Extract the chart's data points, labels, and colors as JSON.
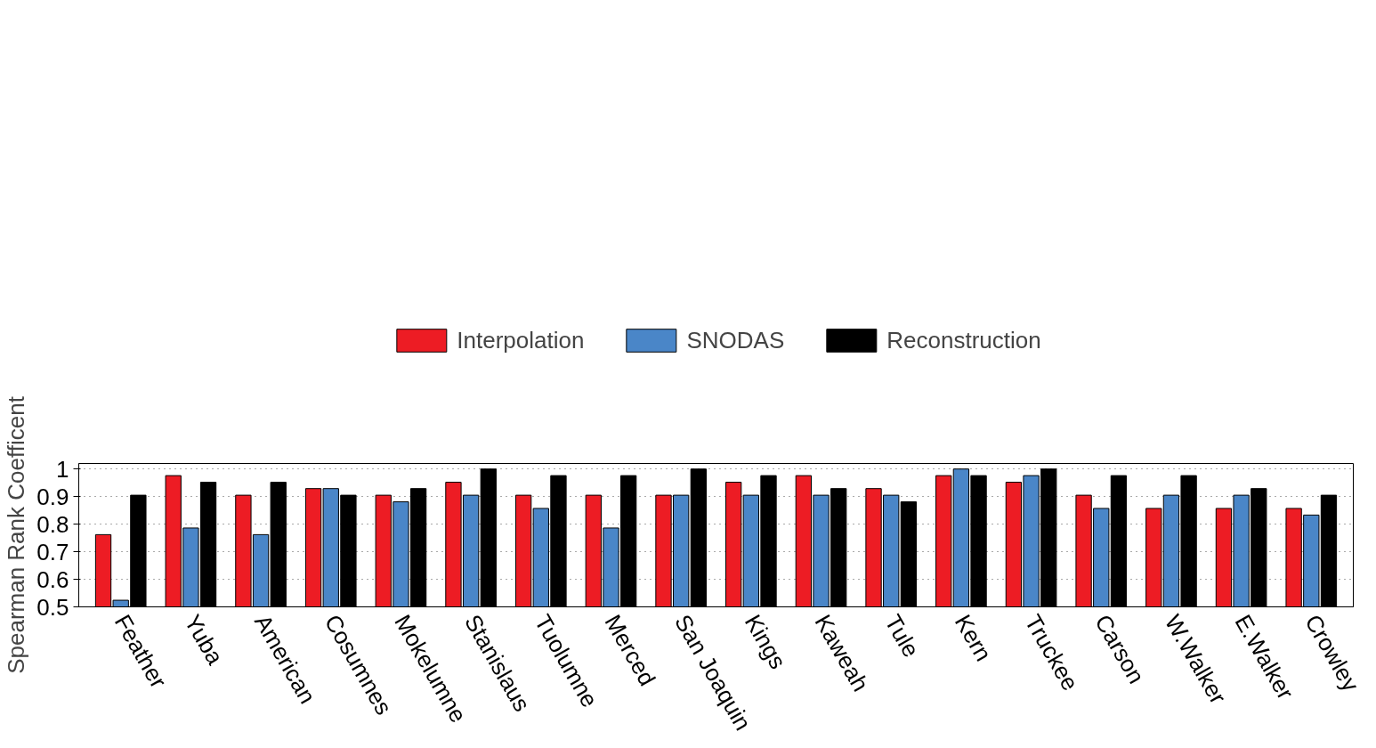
{
  "chart_data": {
    "type": "bar",
    "ylabel": "Spearman Rank Coefficent",
    "categories": [
      "Feather",
      "Yuba",
      "American",
      "Cosumnes",
      "Mokelumne",
      "Stanislaus",
      "Tuolumne",
      "Merced",
      "San Joaquin",
      "Kings",
      "Kaweah",
      "Tule",
      "Kern",
      "Truckee",
      "Carson",
      "W.Walker",
      "E.Walker",
      "Crowley"
    ],
    "series": [
      {
        "name": "Interpolation",
        "color": "#ed1c24",
        "values": [
          0.762,
          0.976,
          0.905,
          0.929,
          0.905,
          0.952,
          0.905,
          0.905,
          0.905,
          0.952,
          0.976,
          0.929,
          0.976,
          0.952,
          0.905,
          0.857,
          0.857,
          0.857
        ]
      },
      {
        "name": "SNODAS",
        "color": "#4a86c8",
        "values": [
          0.524,
          0.786,
          0.762,
          0.929,
          0.881,
          0.905,
          0.857,
          0.786,
          0.905,
          0.905,
          0.905,
          0.905,
          1,
          0.976,
          0.857,
          0.905,
          0.905,
          0.833
        ]
      },
      {
        "name": "Reconstruction",
        "color": "#000000",
        "values": [
          0.905,
          0.952,
          0.952,
          0.905,
          0.929,
          1,
          0.976,
          0.976,
          1,
          0.976,
          0.929,
          0.881,
          0.976,
          1,
          0.976,
          0.976,
          0.929,
          0.905
        ]
      }
    ],
    "ylim": [
      0.5,
      1.02
    ],
    "yticks": [
      0.5,
      0.6,
      0.7,
      0.8,
      0.9,
      1
    ],
    "grid": "y",
    "legend": "top"
  }
}
